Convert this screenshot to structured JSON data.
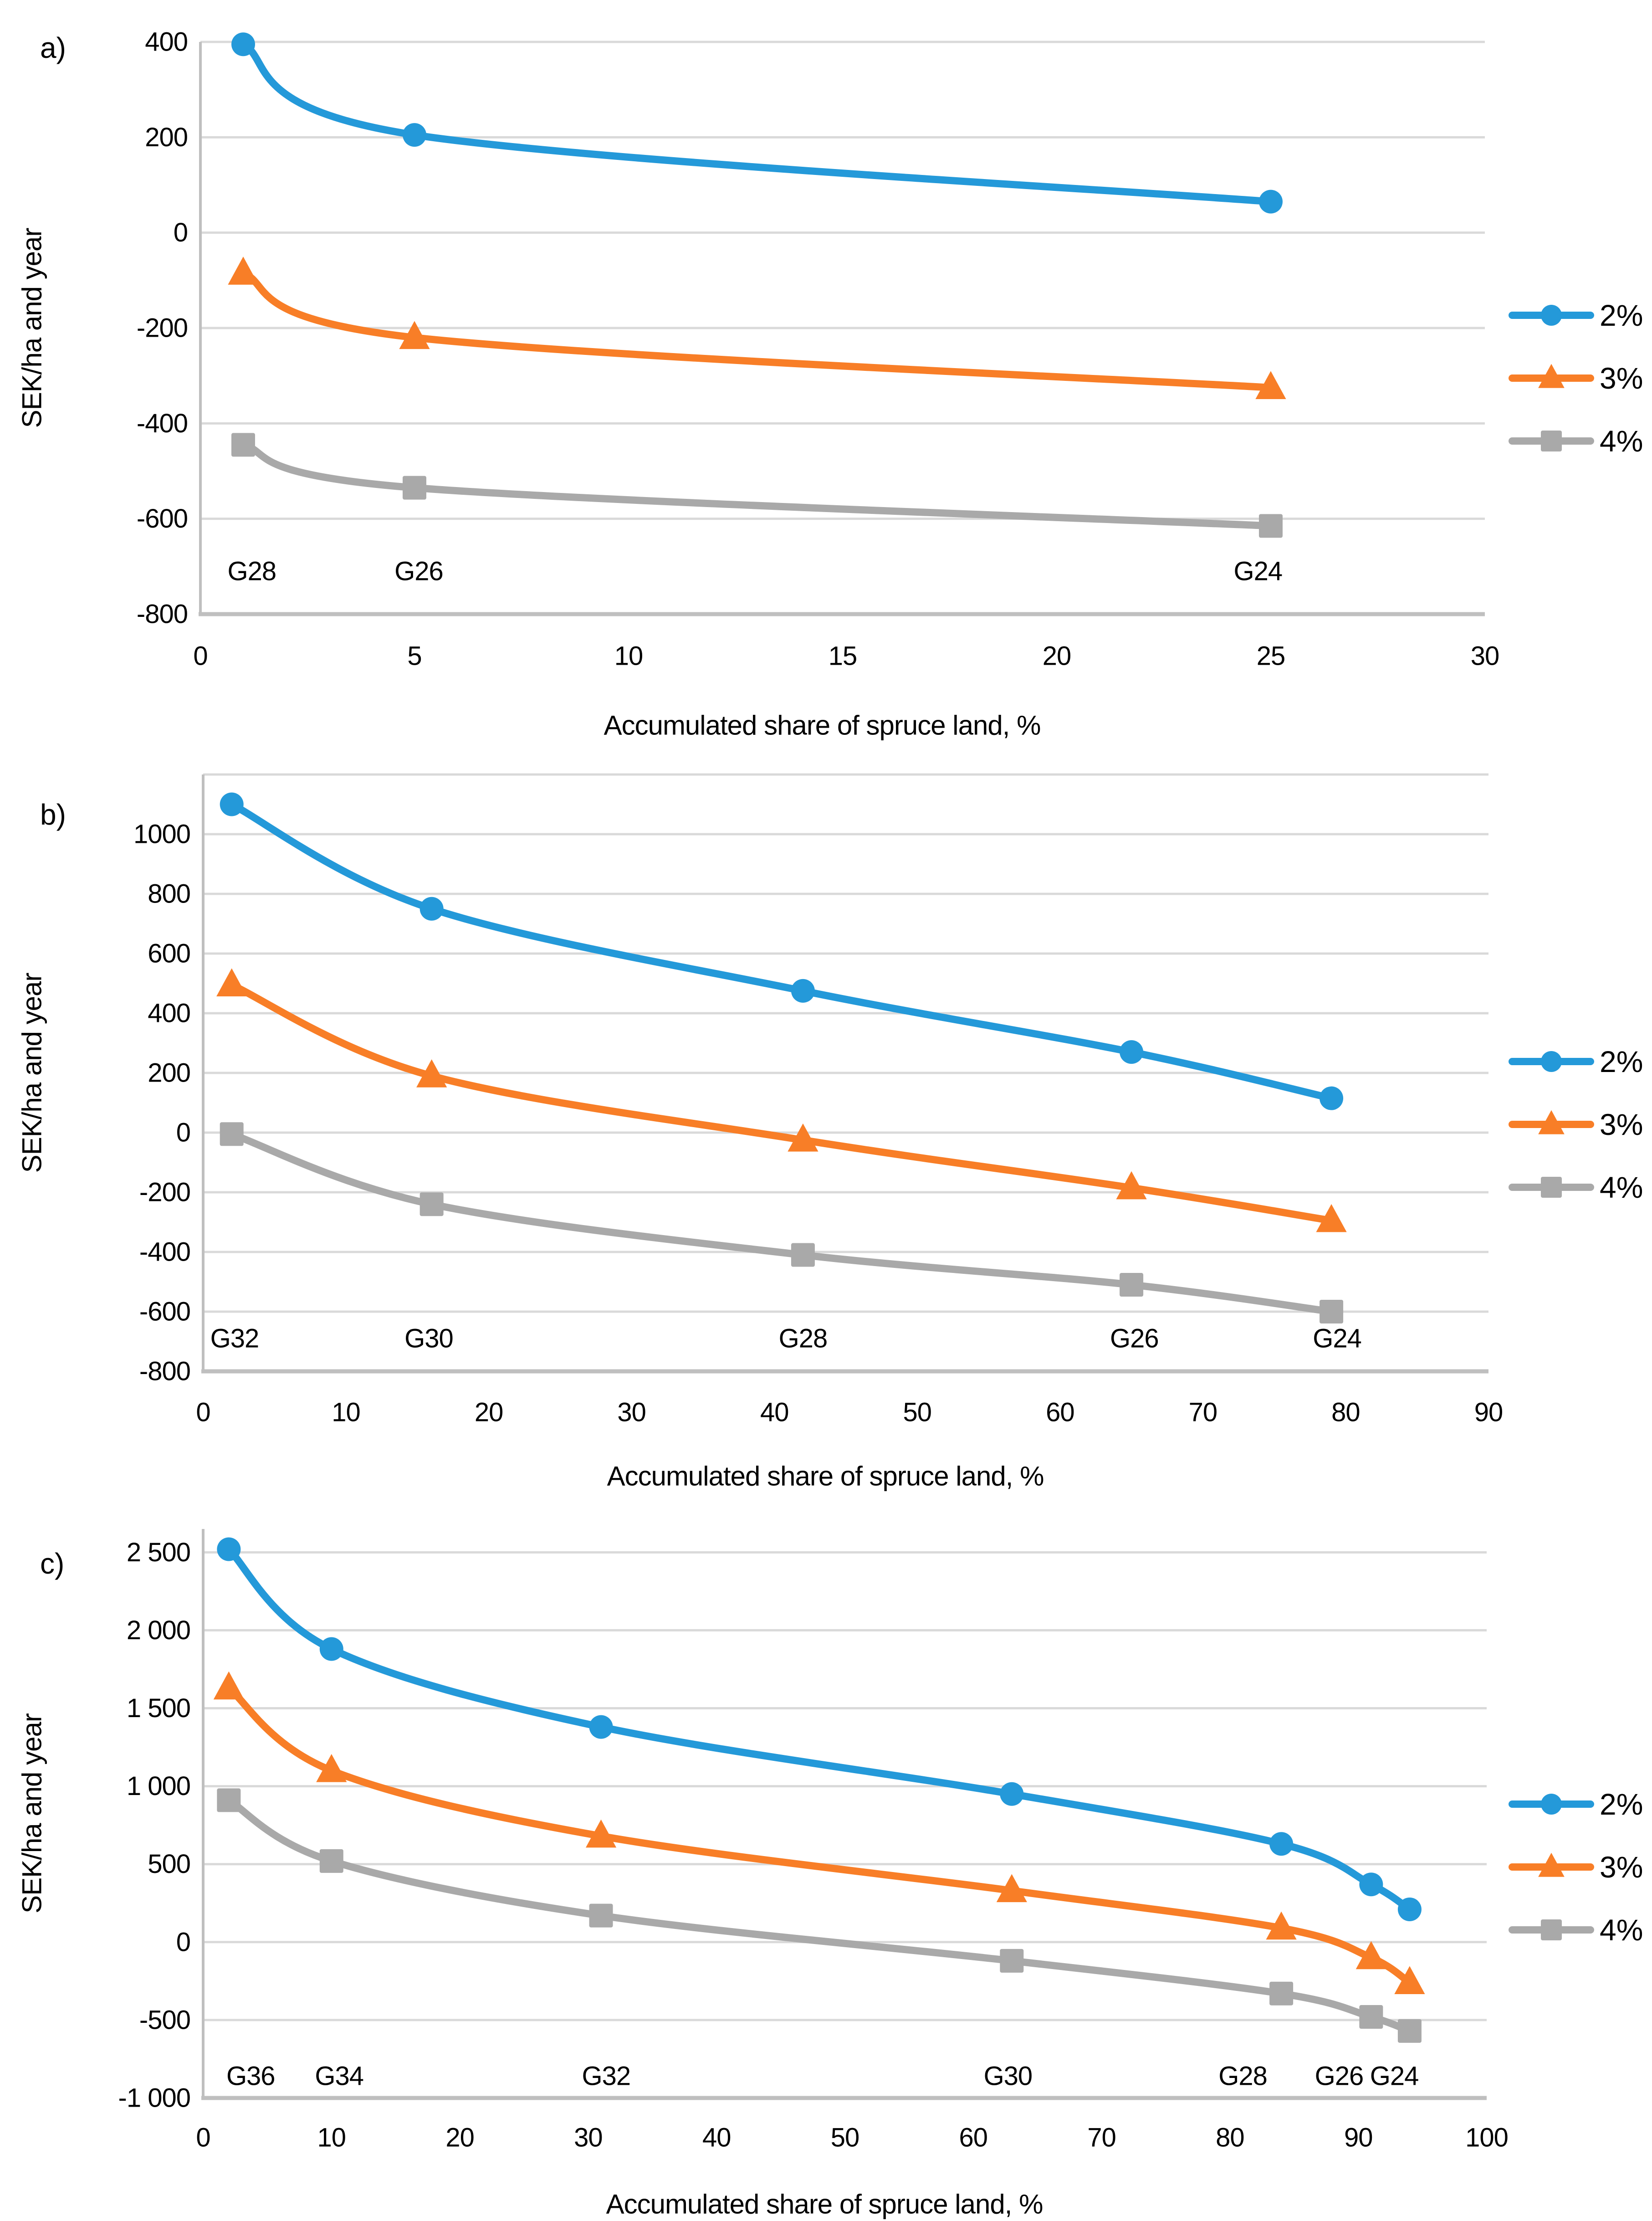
{
  "figure": {
    "background": "#ffffff",
    "text_color": "#000000",
    "gridline_color": "#d9d9d9",
    "axis_line_color": "#bfbfbf"
  },
  "chart_data": [
    {
      "type": "line",
      "panel_label": "a)",
      "xlabel": "Accumulated share of spruce land, %",
      "ylabel": "SEK/ha and year",
      "xlim": [
        0,
        30
      ],
      "ylim": [
        -800,
        400
      ],
      "grid": true,
      "legend_position": "right",
      "x_ticks": [
        0,
        5,
        10,
        15,
        20,
        25,
        30
      ],
      "x_tick_labels": [
        "0",
        "5",
        "10",
        "15",
        "20",
        "25",
        "30"
      ],
      "y_ticks": [
        400,
        200,
        0,
        -200,
        -400,
        -600,
        -800
      ],
      "y_tick_labels": [
        "400",
        "200",
        "0",
        "-200",
        "-400",
        "-600",
        "-800"
      ],
      "extra_gridlines": [],
      "stand_label_y": -710,
      "stand_labels": [
        {
          "text": "G28",
          "x": 1.2
        },
        {
          "text": "G26",
          "x": 5.1
        },
        {
          "text": "G24",
          "x": 24.7
        }
      ],
      "series": [
        {
          "name": "2%",
          "marker": "circle",
          "color": "#2499d9",
          "points": [
            [
              1,
              395
            ],
            [
              5,
              205
            ],
            [
              25,
              65
            ]
          ]
        },
        {
          "name": "3%",
          "marker": "triangle",
          "color": "#f87e27",
          "points": [
            [
              1,
              -85
            ],
            [
              5,
              -220
            ],
            [
              25,
              -325
            ]
          ]
        },
        {
          "name": "4%",
          "marker": "square",
          "color": "#a9a9a9",
          "points": [
            [
              1,
              -445
            ],
            [
              5,
              -535
            ],
            [
              25,
              -615
            ]
          ]
        }
      ]
    },
    {
      "type": "line",
      "panel_label": "b)",
      "xlabel": "Accumulated share of spruce land, %",
      "ylabel": "SEK/ha and year",
      "xlim": [
        0,
        90
      ],
      "ylim": [
        -800,
        1200
      ],
      "grid": true,
      "legend_position": "right",
      "x_ticks": [
        0,
        10,
        20,
        30,
        40,
        50,
        60,
        70,
        80,
        90
      ],
      "x_tick_labels": [
        "0",
        "10",
        "20",
        "30",
        "40",
        "50",
        "60",
        "70",
        "80",
        "90"
      ],
      "y_ticks": [
        1000,
        800,
        600,
        400,
        200,
        0,
        -200,
        -400,
        -600,
        -800
      ],
      "y_tick_labels": [
        "1000",
        "800",
        "600",
        "400",
        "200",
        "0",
        "-200",
        "-400",
        "-600",
        "-800"
      ],
      "extra_gridlines": [
        1200
      ],
      "stand_label_y": -690,
      "stand_labels": [
        {
          "text": "G32",
          "x": 2.2
        },
        {
          "text": "G30",
          "x": 15.8
        },
        {
          "text": "G28",
          "x": 42
        },
        {
          "text": "G26",
          "x": 65.2
        },
        {
          "text": "G24",
          "x": 79.4
        }
      ],
      "series": [
        {
          "name": "2%",
          "marker": "circle",
          "color": "#2499d9",
          "points": [
            [
              2,
              1100
            ],
            [
              16,
              750
            ],
            [
              42,
              475
            ],
            [
              65,
              270
            ],
            [
              79,
              115
            ]
          ]
        },
        {
          "name": "3%",
          "marker": "triangle",
          "color": "#f87e27",
          "points": [
            [
              2,
              495
            ],
            [
              16,
              190
            ],
            [
              42,
              -25
            ],
            [
              65,
              -185
            ],
            [
              79,
              -295
            ]
          ]
        },
        {
          "name": "4%",
          "marker": "square",
          "color": "#a9a9a9",
          "points": [
            [
              2,
              -5
            ],
            [
              16,
              -240
            ],
            [
              42,
              -410
            ],
            [
              65,
              -510
            ],
            [
              79,
              -600
            ]
          ]
        }
      ]
    },
    {
      "type": "line",
      "panel_label": "c)",
      "xlabel": "Accumulated share of spruce land, %",
      "ylabel": "SEK/ha and year",
      "xlim": [
        0,
        100
      ],
      "ylim": [
        -1000,
        2650
      ],
      "grid": true,
      "legend_position": "right",
      "x_ticks": [
        0,
        10,
        20,
        30,
        40,
        50,
        60,
        70,
        80,
        90,
        100
      ],
      "x_tick_labels": [
        "0",
        "10",
        "20",
        "30",
        "40",
        "50",
        "60",
        "70",
        "80",
        "90",
        "100"
      ],
      "y_ticks": [
        2500,
        2000,
        1500,
        1000,
        500,
        0,
        -500,
        -1000
      ],
      "y_tick_labels": [
        "2 500",
        "2 000",
        "1 500",
        "1 000",
        "500",
        "0",
        "-500",
        "-1 000"
      ],
      "extra_gridlines": [],
      "stand_label_y": -860,
      "stand_labels": [
        {
          "text": "G36",
          "x": 3.7
        },
        {
          "text": "G34",
          "x": 10.6
        },
        {
          "text": "G32",
          "x": 31.4
        },
        {
          "text": "G30",
          "x": 62.7
        },
        {
          "text": "G28",
          "x": 81
        },
        {
          "text": "G26",
          "x": 88.5
        },
        {
          "text": "G24",
          "x": 92.8
        }
      ],
      "series": [
        {
          "name": "2%",
          "marker": "circle",
          "color": "#2499d9",
          "points": [
            [
              2,
              2520
            ],
            [
              10,
              1880
            ],
            [
              31,
              1380
            ],
            [
              63,
              950
            ],
            [
              84,
              630
            ],
            [
              91,
              370
            ],
            [
              94,
              210
            ]
          ]
        },
        {
          "name": "3%",
          "marker": "triangle",
          "color": "#f87e27",
          "points": [
            [
              2,
              1630
            ],
            [
              10,
              1100
            ],
            [
              31,
              680
            ],
            [
              63,
              330
            ],
            [
              84,
              90
            ],
            [
              91,
              -100
            ],
            [
              94,
              -260
            ]
          ]
        },
        {
          "name": "4%",
          "marker": "square",
          "color": "#a9a9a9",
          "points": [
            [
              2,
              910
            ],
            [
              10,
              520
            ],
            [
              31,
              170
            ],
            [
              63,
              -120
            ],
            [
              84,
              -330
            ],
            [
              91,
              -480
            ],
            [
              94,
              -570
            ]
          ]
        }
      ]
    }
  ]
}
